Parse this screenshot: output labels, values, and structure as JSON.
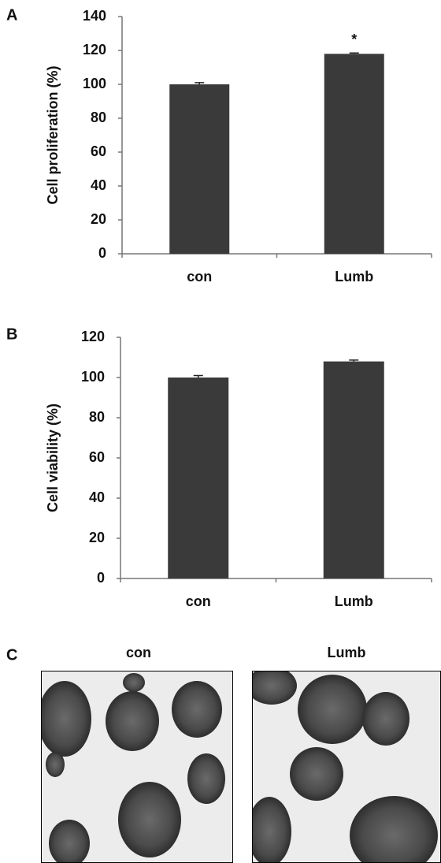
{
  "chart_data": [
    {
      "type": "bar",
      "label": "A",
      "ylabel": "Cell proliferation (%)",
      "categories": [
        "con",
        "Lumb"
      ],
      "values": [
        100,
        118
      ],
      "errors": [
        1,
        0.5
      ],
      "color": "#3a3a3a",
      "ylim": [
        0,
        140
      ],
      "yticks": [
        0,
        20,
        40,
        60,
        80,
        100,
        120,
        140
      ],
      "annotations": [
        {
          "text": "*",
          "x": "Lumb"
        }
      ]
    },
    {
      "type": "bar",
      "label": "B",
      "ylabel": "Cell viability (%)",
      "categories": [
        "con",
        "Lumb"
      ],
      "values": [
        100,
        108
      ],
      "errors": [
        1,
        0.7
      ],
      "color": "#3a3a3a",
      "ylim": [
        0,
        120
      ],
      "yticks": [
        0,
        20,
        40,
        60,
        80,
        100,
        120
      ]
    }
  ],
  "panel_c": {
    "label": "C",
    "images": [
      {
        "title": "con"
      },
      {
        "title": "Lumb"
      }
    ]
  }
}
